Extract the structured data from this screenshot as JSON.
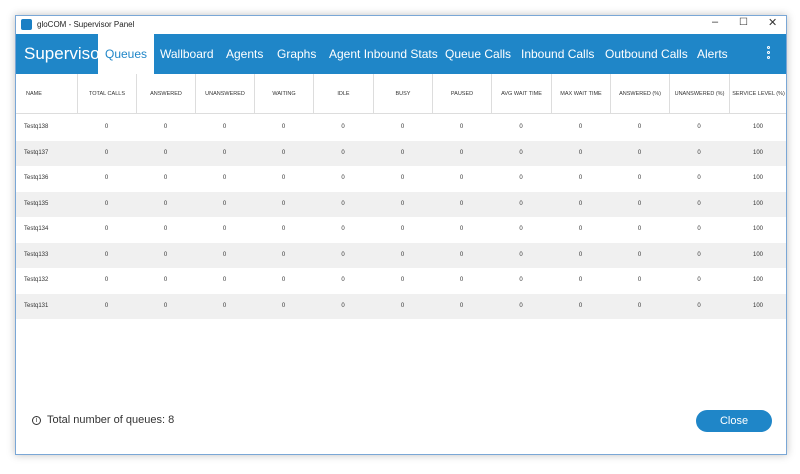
{
  "window": {
    "title": "gloCOM - Supervisor Panel"
  },
  "nav": {
    "brand": "Supervisor",
    "tabs": [
      "Queues",
      "Wallboard",
      "Agents",
      "Graphs",
      "Agent Inbound Stats",
      "Queue Calls",
      "Inbound Calls",
      "Outbound Calls",
      "Alerts"
    ],
    "active": 0
  },
  "table": {
    "columns": [
      "NAME",
      "TOTAL CALLS",
      "ANSWERED",
      "UNANSWERED",
      "WAITING",
      "IDLE",
      "BUSY",
      "PAUSED",
      "AVG WAIT TIME",
      "MAX WAIT TIME",
      "ANSWERED (%)",
      "UNANSWERED (%)",
      "SERVICE LEVEL (%)"
    ],
    "rows": [
      [
        "Testq138",
        0,
        0,
        0,
        0,
        0,
        0,
        0,
        0,
        0,
        0,
        0,
        100
      ],
      [
        "Testq137",
        0,
        0,
        0,
        0,
        0,
        0,
        0,
        0,
        0,
        0,
        0,
        100
      ],
      [
        "Testq136",
        0,
        0,
        0,
        0,
        0,
        0,
        0,
        0,
        0,
        0,
        0,
        100
      ],
      [
        "Testq135",
        0,
        0,
        0,
        0,
        0,
        0,
        0,
        0,
        0,
        0,
        0,
        100
      ],
      [
        "Testq134",
        0,
        0,
        0,
        0,
        0,
        0,
        0,
        0,
        0,
        0,
        0,
        100
      ],
      [
        "Testq133",
        0,
        0,
        0,
        0,
        0,
        0,
        0,
        0,
        0,
        0,
        0,
        100
      ],
      [
        "Testq132",
        0,
        0,
        0,
        0,
        0,
        0,
        0,
        0,
        0,
        0,
        0,
        100
      ],
      [
        "Testq131",
        0,
        0,
        0,
        0,
        0,
        0,
        0,
        0,
        0,
        0,
        0,
        100
      ]
    ]
  },
  "footer": {
    "summary": "Total number of queues: 8",
    "close": "Close"
  }
}
